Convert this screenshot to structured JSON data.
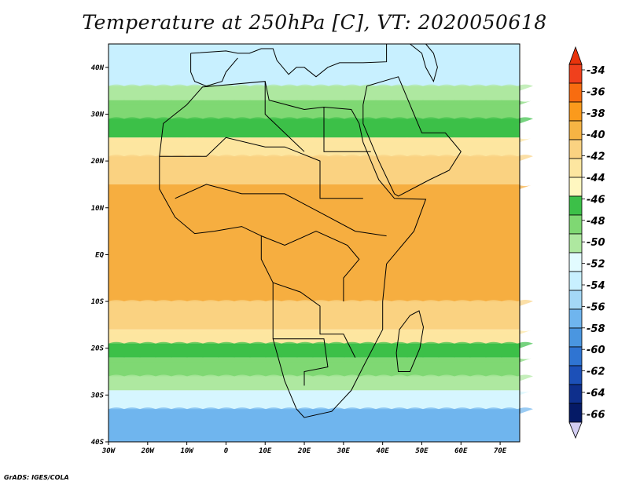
{
  "title": "Temperature at 250hPa [C], VT: 2020050618",
  "footer": "GrADS: IGES/COLA",
  "map": {
    "lon_range": [
      -30,
      75
    ],
    "lat_range": [
      -40,
      45
    ],
    "lat_ticks": [
      {
        "value": 40,
        "label": "40N"
      },
      {
        "value": 30,
        "label": "30N"
      },
      {
        "value": 20,
        "label": "20N"
      },
      {
        "value": 10,
        "label": "10N"
      },
      {
        "value": 0,
        "label": "EQ"
      },
      {
        "value": -10,
        "label": "10S"
      },
      {
        "value": -20,
        "label": "20S"
      },
      {
        "value": -30,
        "label": "30S"
      },
      {
        "value": -40,
        "label": "40S"
      }
    ],
    "lon_ticks": [
      {
        "value": -30,
        "label": "30W"
      },
      {
        "value": -20,
        "label": "20W"
      },
      {
        "value": -10,
        "label": "10W"
      },
      {
        "value": 0,
        "label": "0"
      },
      {
        "value": 10,
        "label": "10E"
      },
      {
        "value": 20,
        "label": "20E"
      },
      {
        "value": 30,
        "label": "30E"
      },
      {
        "value": 40,
        "label": "40E"
      },
      {
        "value": 50,
        "label": "50E"
      },
      {
        "value": 60,
        "label": "60E"
      },
      {
        "value": 70,
        "label": "70E"
      }
    ],
    "bands": [
      {
        "lat_top": 45,
        "lat_bottom": 36,
        "color": "#c8f0ff"
      },
      {
        "lat_top": 36,
        "lat_bottom": 33,
        "color": "#aee8a0"
      },
      {
        "lat_top": 33,
        "lat_bottom": 29,
        "color": "#7fd873"
      },
      {
        "lat_top": 29,
        "lat_bottom": 25,
        "color": "#3cc048"
      },
      {
        "lat_top": 25,
        "lat_bottom": 21,
        "color": "#fde6a0"
      },
      {
        "lat_top": 21,
        "lat_bottom": 15,
        "color": "#fad281"
      },
      {
        "lat_top": 15,
        "lat_bottom": -10,
        "color": "#f6ae40"
      },
      {
        "lat_top": -10,
        "lat_bottom": -16,
        "color": "#fad281"
      },
      {
        "lat_top": -16,
        "lat_bottom": -19,
        "color": "#fde6a0"
      },
      {
        "lat_top": -19,
        "lat_bottom": -22,
        "color": "#3cc048"
      },
      {
        "lat_top": -22,
        "lat_bottom": -26,
        "color": "#7fd873"
      },
      {
        "lat_top": -26,
        "lat_bottom": -29,
        "color": "#aee8a0"
      },
      {
        "lat_top": -29,
        "lat_bottom": -33,
        "color": "#d6f6ff"
      },
      {
        "lat_top": -33,
        "lat_bottom": -40,
        "color": "#6fb5ee"
      }
    ]
  },
  "colorbar": {
    "values": [
      "-34",
      "-36",
      "-38",
      "-40",
      "-42",
      "-44",
      "-46",
      "-48",
      "-50",
      "-52",
      "-54",
      "-56",
      "-58",
      "-60",
      "-62",
      "-64",
      "-66"
    ],
    "colors": [
      "#f0401c",
      "#f86c10",
      "#fb9a1c",
      "#f6b444",
      "#fad281",
      "#fde6a0",
      "#fff7c0",
      "#3cc048",
      "#7fd873",
      "#aee8a0",
      "#e2fbff",
      "#c8f0ff",
      "#a4d8f6",
      "#6fb5ee",
      "#4a96e0",
      "#2f74d2",
      "#1c50b8",
      "#0e2f8c",
      "#051a66"
    ],
    "top_color": "#e8340c",
    "bottom_color": "#d2cdf2"
  }
}
